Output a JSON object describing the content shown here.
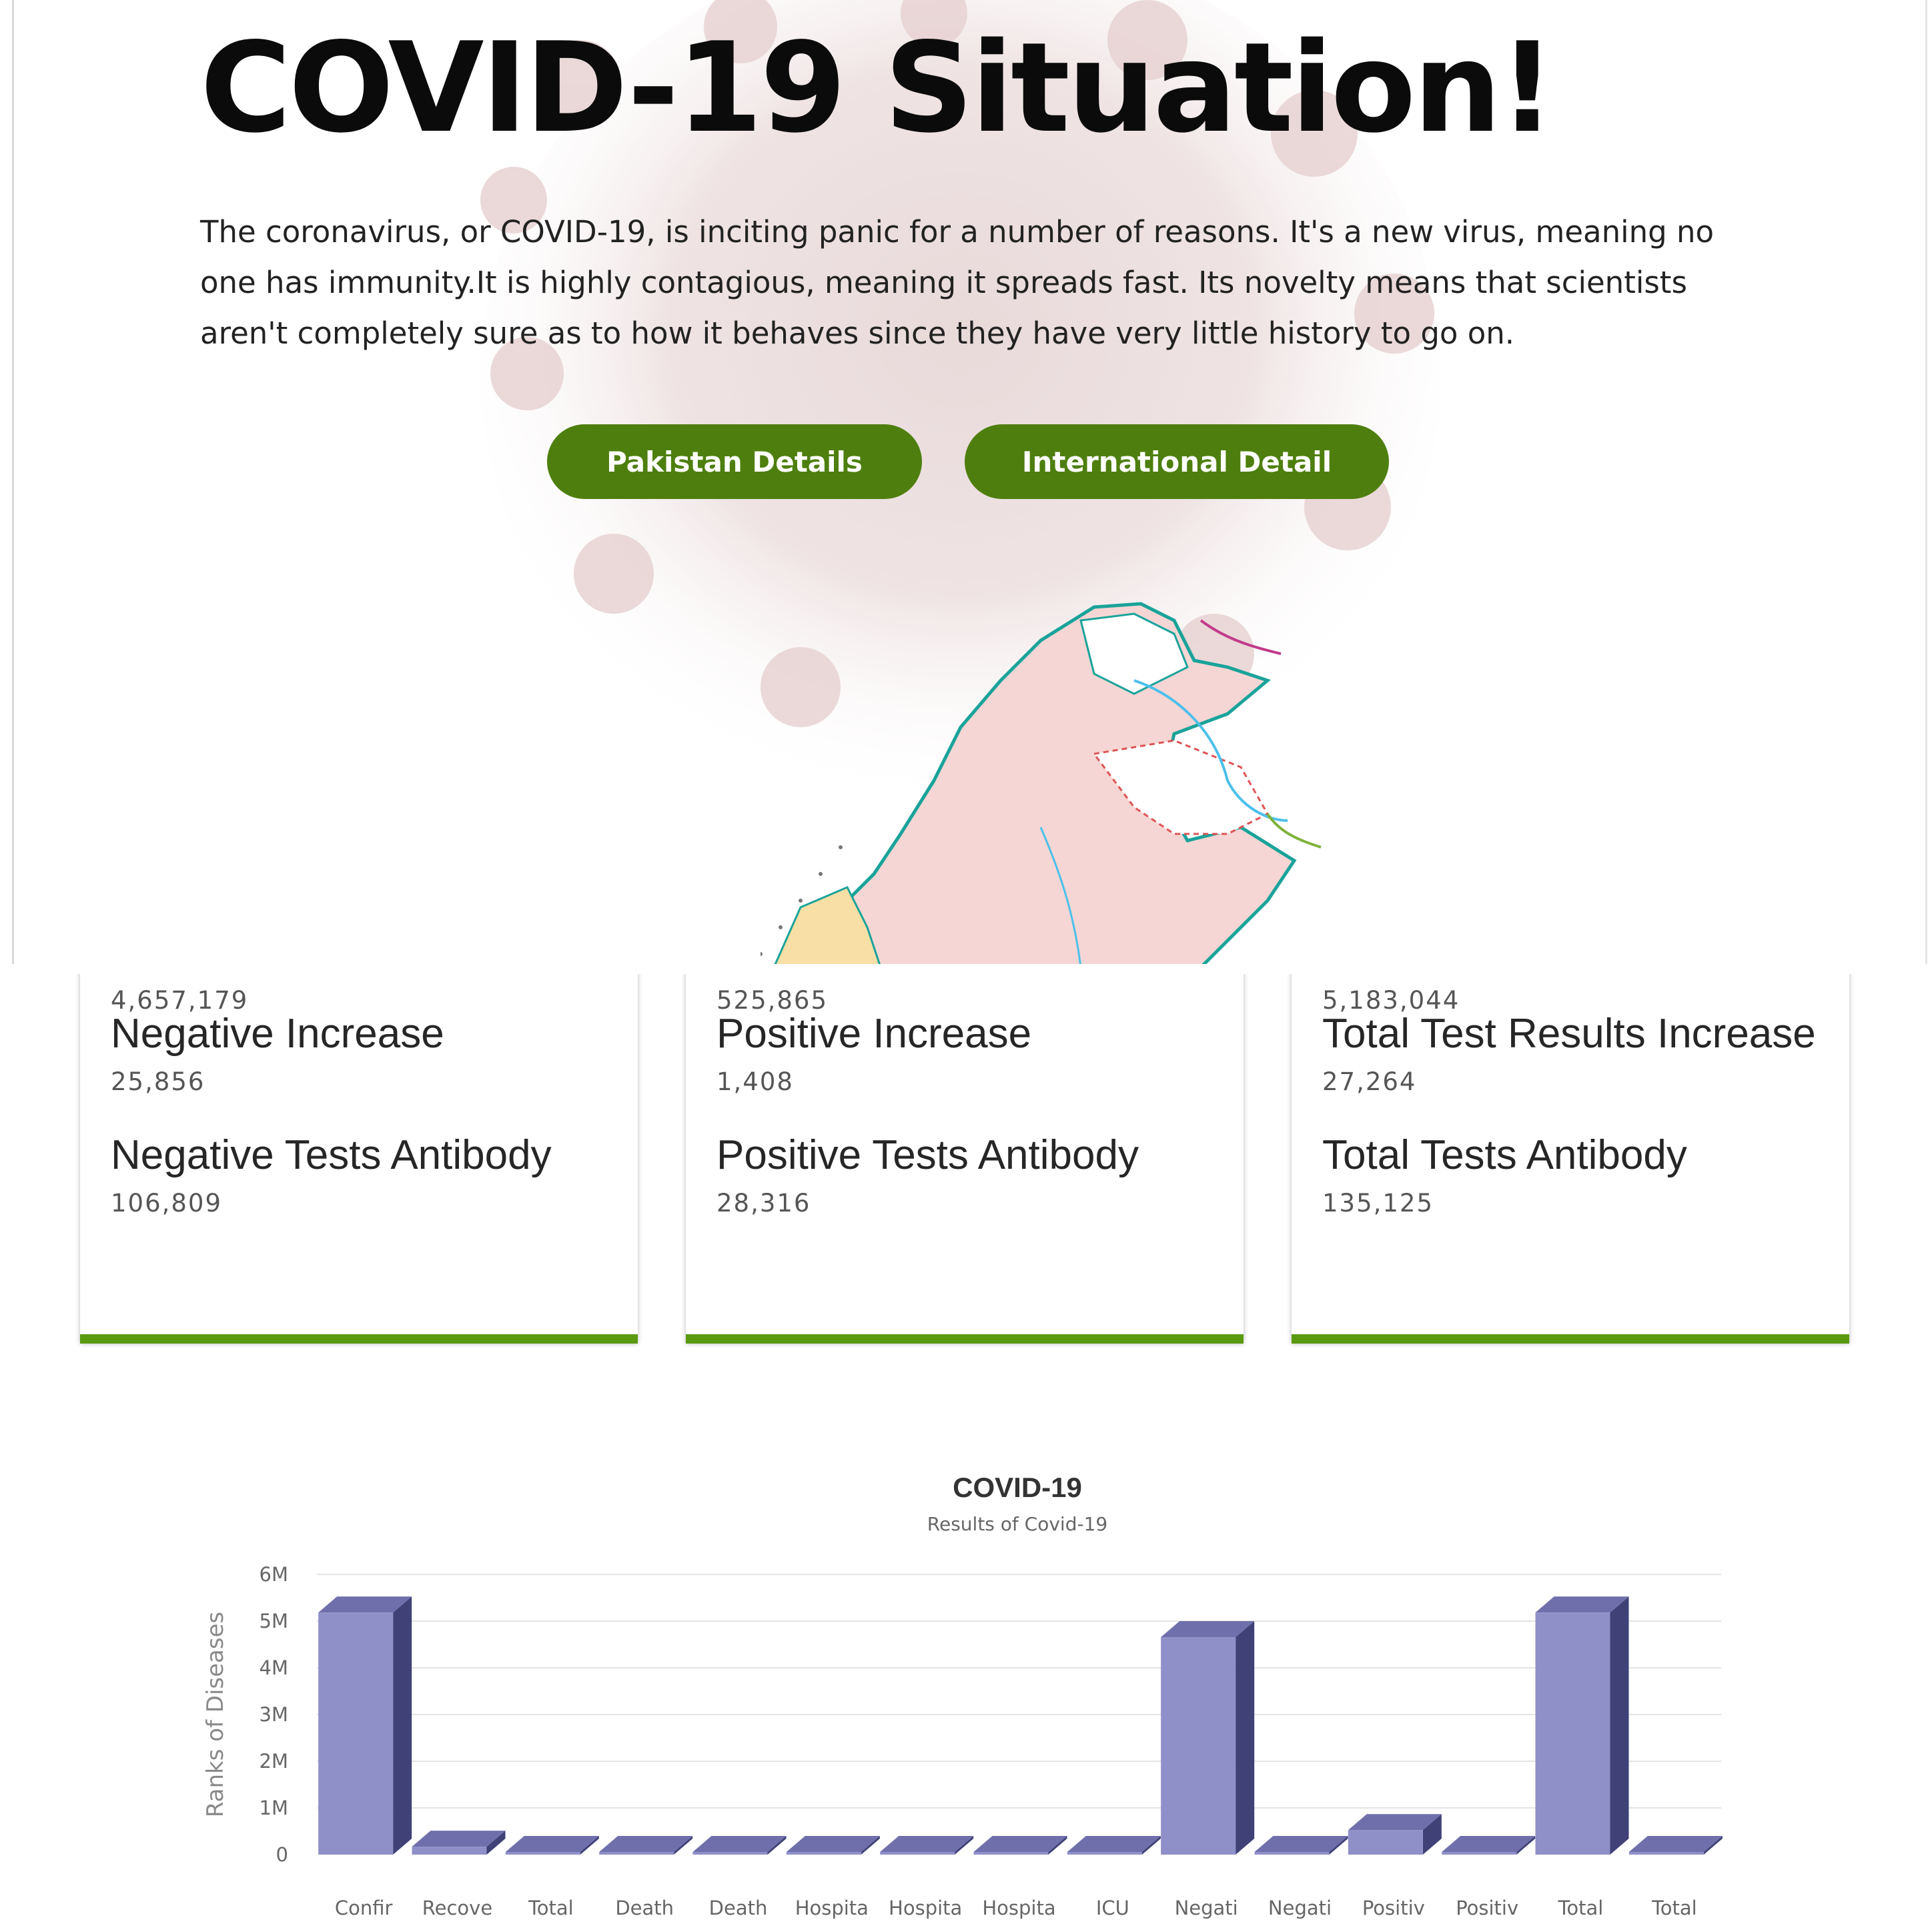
{
  "hero": {
    "title": "COVID-19 Situation!",
    "description": "The coronavirus, or COVID-19, is inciting panic for a number of reasons. It's a new virus, meaning no one has immunity.It is highly contagious, meaning it spreads fast. Its novelty means that scientists aren't completely sure as to how it behaves since they have very little history to go on.",
    "buttons": {
      "pakistan": "Pakistan Details",
      "international": "International Detail"
    }
  },
  "cards": [
    {
      "top_value": "4,657,179",
      "label_1": "Negative Increase",
      "value_1": "25,856",
      "label_2": "Negative Tests Antibody",
      "value_2": "106,809"
    },
    {
      "top_value": "525,865",
      "label_1": "Positive Increase",
      "value_1": "1,408",
      "label_2": "Positive Tests Antibody",
      "value_2": "28,316"
    },
    {
      "top_value": "5,183,044",
      "label_1": "Total Test Results Increase",
      "value_1": "27,264",
      "label_2": "Total Tests Antibody",
      "value_2": "135,125"
    }
  ],
  "colors": {
    "accent_green": "#4e7f0e",
    "card_bar_green": "#5a9a10",
    "bar_front": "#8f90c8",
    "bar_side": "#3f4177",
    "bar_top": "#6f70ab"
  },
  "chart_data": {
    "type": "bar",
    "title": "COVID-19",
    "subtitle": "Results of Covid-19",
    "ylabel": "Ranks of Diseases",
    "xlabel": "",
    "ylim": [
      0,
      6000000
    ],
    "yticks": [
      "0",
      "1M",
      "2M",
      "3M",
      "4M",
      "5M",
      "6M"
    ],
    "categories": [
      "Confir",
      "Recove",
      "Total",
      "Death",
      "Death",
      "Hospita",
      "Hospita",
      "Hospita",
      "ICU",
      "Negati",
      "Negati",
      "Positiv",
      "Positiv",
      "Total",
      "Total"
    ],
    "values": [
      5183044,
      170000,
      0,
      0,
      0,
      0,
      0,
      0,
      0,
      4657179,
      25856,
      525865,
      1408,
      5183044,
      27264
    ]
  }
}
